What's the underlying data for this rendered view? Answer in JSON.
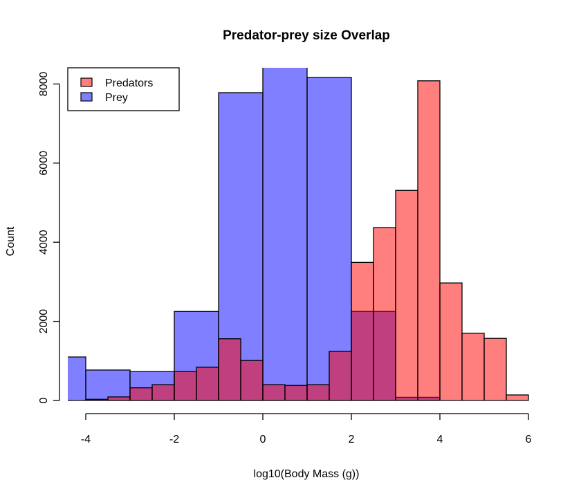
{
  "chart_data": {
    "type": "bar",
    "subtype": "overlapping-histogram",
    "title": "Predator-prey size Overlap",
    "xlabel": "log10(Body Mass (g))",
    "ylabel": "Count",
    "xlim": [
      -4.41,
      6.3
    ],
    "ylim": [
      0,
      8410
    ],
    "x_ticks": [
      -4,
      -2,
      0,
      2,
      4,
      6
    ],
    "x_tick_labels": [
      "-4",
      "-2",
      "0",
      "2",
      "4",
      "6"
    ],
    "y_ticks": [
      0,
      2000,
      4000,
      6000,
      8000
    ],
    "y_tick_labels": [
      "0",
      "2000",
      "4000",
      "6000",
      "8000"
    ],
    "grid": false,
    "legend": {
      "position": "top-left",
      "entries": [
        {
          "label": "Predators",
          "color": "#ff0000",
          "alpha": 0.5
        },
        {
          "label": "Prey",
          "color": "#0000ff",
          "alpha": 0.5
        }
      ]
    },
    "series": [
      {
        "name": "Prey",
        "color": "#0000ff",
        "alpha": 0.5,
        "bin_edges": [
          -5,
          -4,
          -3,
          -2,
          -1,
          0,
          1,
          2,
          3,
          4
        ],
        "values": [
          1100,
          770,
          730,
          2250,
          7780,
          8600,
          8165,
          2250,
          80
        ]
      },
      {
        "name": "Predators",
        "color": "#ff0000",
        "alpha": 0.5,
        "bin_edges": [
          -4,
          -3.5,
          -3,
          -2.5,
          -2,
          -1.5,
          -1,
          -0.5,
          0,
          0.5,
          1,
          1.5,
          2,
          2.5,
          3,
          3.5,
          4,
          4.5,
          5,
          5.5,
          6
        ],
        "values": [
          30,
          90,
          320,
          400,
          730,
          840,
          1560,
          1010,
          400,
          380,
          400,
          1240,
          3490,
          4370,
          5310,
          8080,
          2970,
          1700,
          1570,
          140
        ]
      }
    ]
  }
}
